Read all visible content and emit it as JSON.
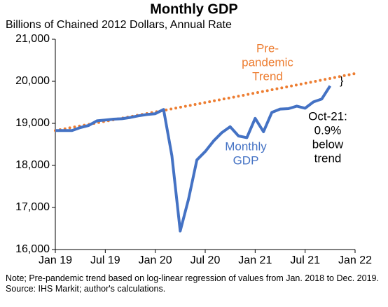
{
  "chart_data": {
    "type": "line",
    "title": "Monthly GDP",
    "subtitle": "Billions of Chained 2012 Dollars, Annual Rate",
    "x": [
      "Jan 19",
      "Feb 19",
      "Mar 19",
      "Apr 19",
      "May 19",
      "Jun 19",
      "Jul 19",
      "Aug 19",
      "Sep 19",
      "Oct 19",
      "Nov 19",
      "Dec 19",
      "Jan 20",
      "Feb 20",
      "Mar 20",
      "Apr 20",
      "May 20",
      "Jun 20",
      "Jul 20",
      "Aug 20",
      "Sep 20",
      "Oct 20",
      "Nov 20",
      "Dec 20",
      "Jan 21",
      "Feb 21",
      "Mar 21",
      "Apr 21",
      "May 21",
      "Jun 21",
      "Jul 21",
      "Aug 21",
      "Sep 21",
      "Oct 21",
      "Nov 21",
      "Dec 21",
      "Jan 22"
    ],
    "xticks": [
      "Jan 19",
      "Jul 19",
      "Jan 20",
      "Jul 20",
      "Jan 21",
      "Jul 21",
      "Jan 22"
    ],
    "series": [
      {
        "name": "Pre-pandemic Trend",
        "color": "#ed7d31",
        "dash": "dotted",
        "values": [
          18830,
          18866,
          18903,
          18939,
          18976,
          19012,
          19049,
          19086,
          19123,
          19160,
          19197,
          19234,
          19271,
          19308,
          19345,
          19383,
          19420,
          19458,
          19495,
          19533,
          19571,
          19608,
          19646,
          19684,
          19722,
          19760,
          19799,
          19837,
          19875,
          19914,
          19952,
          19991,
          20030,
          20068,
          20107,
          20146,
          20185
        ]
      },
      {
        "name": "Monthly GDP",
        "color": "#4472c4",
        "dash": "solid",
        "values": [
          18830,
          18830,
          18830,
          18900,
          18950,
          19060,
          19080,
          19100,
          19110,
          19140,
          19180,
          19210,
          19230,
          19330,
          18230,
          16440,
          17200,
          18130,
          18330,
          18580,
          18780,
          18920,
          18700,
          18660,
          19120,
          18800,
          19260,
          19340,
          19350,
          19410,
          19360,
          19510,
          19580,
          19890,
          null,
          null,
          null
        ]
      }
    ],
    "ylim": [
      16000,
      21000
    ],
    "yticks": [
      {
        "value": 16000,
        "label": "16,000"
      },
      {
        "value": 17000,
        "label": "17,000"
      },
      {
        "value": 18000,
        "label": "18,000"
      },
      {
        "value": 19000,
        "label": "19,000"
      },
      {
        "value": 20000,
        "label": "20,000"
      },
      {
        "value": 21000,
        "label": "21,000"
      }
    ],
    "annotations": [
      {
        "lines": [
          "Pre-",
          "pandemic",
          "Trend"
        ],
        "color": "#ed7d31"
      },
      {
        "lines": [
          "Monthly",
          "GDP"
        ],
        "color": "#4472c4"
      },
      {
        "lines": [
          "Oct-21:",
          "0.9%",
          "below",
          "trend"
        ],
        "color": "#000000"
      }
    ],
    "notes": [
      "Note; Pre-pandemic trend based on log-linear regression of values from Jan. 2018 to Dec. 2019.",
      "Source: IHS Markit; author's calculations."
    ]
  }
}
